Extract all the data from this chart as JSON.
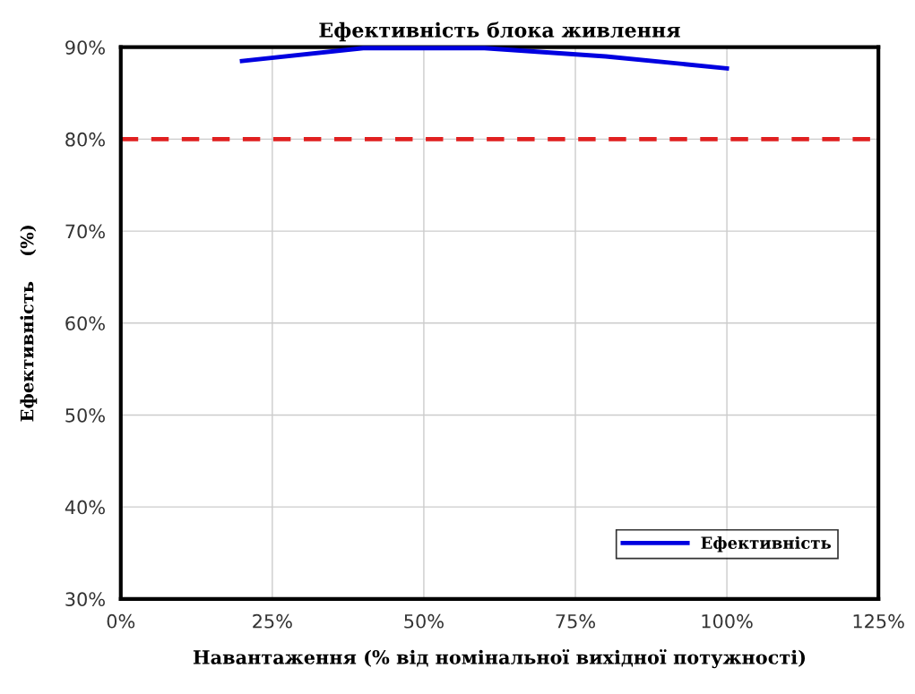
{
  "chart_data": {
    "type": "line",
    "title": "Ефективність блока живлення",
    "xlabel": "Навантаження (% від номінальної вихідної потужності)",
    "ylabel": "Ефективність    (%)",
    "x": [
      20,
      40,
      60,
      80,
      100
    ],
    "series": [
      {
        "name": "Ефективність",
        "color": "#0000e0",
        "values": [
          88.5,
          89.9,
          89.9,
          89.0,
          87.7
        ]
      }
    ],
    "xlim": [
      0,
      125
    ],
    "xticks": [
      {
        "value": 0,
        "label": "0%"
      },
      {
        "value": 25,
        "label": "25%"
      },
      {
        "value": 50,
        "label": "50%"
      },
      {
        "value": 75,
        "label": "75%"
      },
      {
        "value": 100,
        "label": "100%"
      },
      {
        "value": 125,
        "label": "125%"
      }
    ],
    "ylim": [
      30,
      90
    ],
    "yticks": [
      {
        "value": 30,
        "label": "30%"
      },
      {
        "value": 40,
        "label": "40%"
      },
      {
        "value": 50,
        "label": "50%"
      },
      {
        "value": 60,
        "label": "60%"
      },
      {
        "value": 70,
        "label": "70%"
      },
      {
        "value": 80,
        "label": "80%"
      },
      {
        "value": 90,
        "label": "90%"
      }
    ],
    "ref_lines": [
      {
        "axis": "y",
        "value": 80,
        "color": "#e02020",
        "line_style": "dashed"
      }
    ],
    "grid": true,
    "legend": "bottom right",
    "marker": "none",
    "line_style": "solid"
  }
}
